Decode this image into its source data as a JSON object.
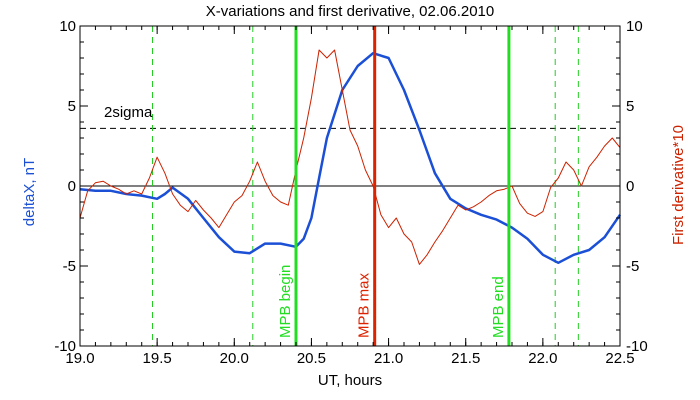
{
  "chart_data": {
    "type": "line",
    "title": "X-variations and first derivative, 02.06.2010",
    "xlabel": "UT, hours",
    "ylabel_left": "deltaX, nT",
    "ylabel_right": "First derivative*10",
    "xlim": [
      19.0,
      22.5
    ],
    "ylim_left": [
      -10,
      10
    ],
    "ylim_right": [
      -10,
      10
    ],
    "x_ticks": [
      "19.0",
      "19.5",
      "20.0",
      "20.5",
      "21.0",
      "21.5",
      "22.0",
      "22.5"
    ],
    "y_ticks_left": [
      "-10",
      "-5",
      "0",
      "5",
      "10"
    ],
    "y_ticks_right": [
      "-10",
      "-5",
      "0",
      "5",
      "10"
    ],
    "threshold": {
      "label": "2sigma",
      "value": 3.6
    },
    "zero_line": 0,
    "colors": {
      "deltaX": "#1a4fd6",
      "derivative": "#cc2200",
      "mpb_green": "#22dd22",
      "mpb_red": "#dd2200",
      "dashed_green": "#22cc22"
    },
    "markers": [
      {
        "x": 20.4,
        "label": "MPB begin",
        "color": "#22dd22"
      },
      {
        "x": 20.91,
        "label": "MPB max",
        "color": "#dd2200"
      },
      {
        "x": 21.78,
        "label": "MPB end",
        "color": "#22dd22"
      }
    ],
    "dashed_lines": [
      19.47,
      20.12,
      22.08,
      22.23
    ],
    "series": [
      {
        "name": "deltaX, nT",
        "axis": "left",
        "x": [
          19.0,
          19.1,
          19.2,
          19.3,
          19.4,
          19.5,
          19.55,
          19.6,
          19.7,
          19.8,
          19.9,
          20.0,
          20.1,
          20.2,
          20.3,
          20.4,
          20.45,
          20.5,
          20.55,
          20.6,
          20.7,
          20.8,
          20.9,
          21.0,
          21.1,
          21.2,
          21.3,
          21.4,
          21.5,
          21.6,
          21.7,
          21.8,
          21.9,
          22.0,
          22.1,
          22.2,
          22.3,
          22.4,
          22.5
        ],
        "y": [
          -0.2,
          -0.3,
          -0.3,
          -0.5,
          -0.6,
          -0.8,
          -0.5,
          -0.1,
          -0.8,
          -2.0,
          -3.2,
          -4.1,
          -4.2,
          -3.6,
          -3.6,
          -3.8,
          -3.3,
          -2.0,
          0.5,
          3.0,
          6.0,
          7.5,
          8.3,
          8.0,
          6.0,
          3.5,
          0.8,
          -0.8,
          -1.4,
          -1.8,
          -2.1,
          -2.6,
          -3.3,
          -4.3,
          -4.8,
          -4.3,
          -4.0,
          -3.2,
          -1.8
        ]
      },
      {
        "name": "First derivative*10",
        "axis": "right",
        "x": [
          19.0,
          19.05,
          19.1,
          19.15,
          19.2,
          19.25,
          19.3,
          19.35,
          19.4,
          19.45,
          19.5,
          19.55,
          19.6,
          19.65,
          19.7,
          19.75,
          19.8,
          19.85,
          19.9,
          19.95,
          20.0,
          20.05,
          20.1,
          20.15,
          20.2,
          20.25,
          20.3,
          20.35,
          20.4,
          20.45,
          20.5,
          20.55,
          20.6,
          20.65,
          20.7,
          20.75,
          20.8,
          20.85,
          20.9,
          20.95,
          21.0,
          21.05,
          21.1,
          21.15,
          21.2,
          21.25,
          21.3,
          21.35,
          21.4,
          21.45,
          21.5,
          21.55,
          21.6,
          21.65,
          21.7,
          21.75,
          21.8,
          21.85,
          21.9,
          21.95,
          22.0,
          22.05,
          22.1,
          22.15,
          22.2,
          22.25,
          22.3,
          22.35,
          22.4,
          22.45,
          22.5
        ],
        "y": [
          -2.0,
          -0.3,
          0.2,
          0.3,
          0.0,
          -0.2,
          -0.5,
          -0.3,
          -0.5,
          0.5,
          1.8,
          0.8,
          -0.5,
          -1.2,
          -1.6,
          -0.9,
          -1.5,
          -2.0,
          -2.6,
          -1.8,
          -1.0,
          -0.6,
          0.3,
          1.5,
          0.3,
          -0.6,
          -1.0,
          -1.2,
          1.0,
          3.0,
          5.5,
          8.5,
          8.0,
          8.5,
          6.0,
          3.5,
          2.5,
          1.0,
          0.0,
          -1.8,
          -2.6,
          -2.0,
          -3.0,
          -3.5,
          -4.9,
          -4.3,
          -3.5,
          -2.8,
          -2.0,
          -1.2,
          -1.5,
          -1.3,
          -1.0,
          -0.6,
          -0.3,
          -0.2,
          0.0,
          -1.1,
          -1.7,
          -1.9,
          -1.6,
          -0.1,
          0.5,
          1.5,
          1.0,
          0.0,
          1.2,
          1.8,
          2.5,
          3.0,
          2.4
        ]
      }
    ]
  }
}
